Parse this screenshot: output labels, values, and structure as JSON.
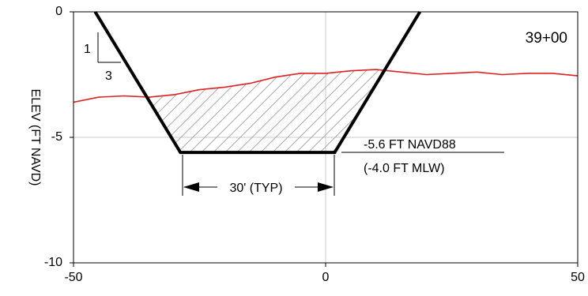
{
  "chart_data": {
    "type": "line",
    "title": "",
    "station_label": "39+00",
    "xlabel": "",
    "ylabel": "ELEV (FT NAVD)",
    "xlim": [
      -50,
      50
    ],
    "ylim": [
      -10,
      0
    ],
    "xticks": [
      {
        "value": -50,
        "label": "-50"
      },
      {
        "value": 0,
        "label": "0"
      },
      {
        "value": 50,
        "label": "50"
      }
    ],
    "yticks": [
      {
        "value": 0,
        "label": "0"
      },
      {
        "value": -5,
        "label": "-5"
      },
      {
        "value": -10,
        "label": "-10"
      }
    ],
    "grid": {
      "x": [
        0
      ],
      "y": [
        -5
      ]
    },
    "colors": {
      "ground": "#e02020",
      "template": "#000000",
      "hatch": "#aaaaaa",
      "grid": "#c8c8c8"
    },
    "series": [
      {
        "role": "existing-ground",
        "x": [
          -50,
          -45,
          -40,
          -35,
          -30,
          -25,
          -20,
          -15,
          -10,
          -5,
          0,
          5,
          10,
          15,
          20,
          25,
          30,
          35,
          40,
          45,
          50
        ],
        "y": [
          -3.6,
          -3.4,
          -3.35,
          -3.4,
          -3.3,
          -3.1,
          -3.0,
          -2.85,
          -2.6,
          -2.45,
          -2.45,
          -2.35,
          -2.3,
          -2.4,
          -2.5,
          -2.45,
          -2.4,
          -2.5,
          -2.45,
          -2.45,
          -2.55
        ]
      },
      {
        "role": "dredge-template",
        "x": [
          -45.7,
          -28.8,
          1.8,
          18.7
        ],
        "y": [
          0,
          -5.6,
          -5.6,
          0
        ]
      }
    ],
    "annotations": {
      "slope": {
        "rise": "1",
        "run": "3"
      },
      "depth_navd": "-5.6 FT NAVD88",
      "depth_mlw": "(-4.0 FT MLW)",
      "width": "30' (TYP)"
    }
  }
}
